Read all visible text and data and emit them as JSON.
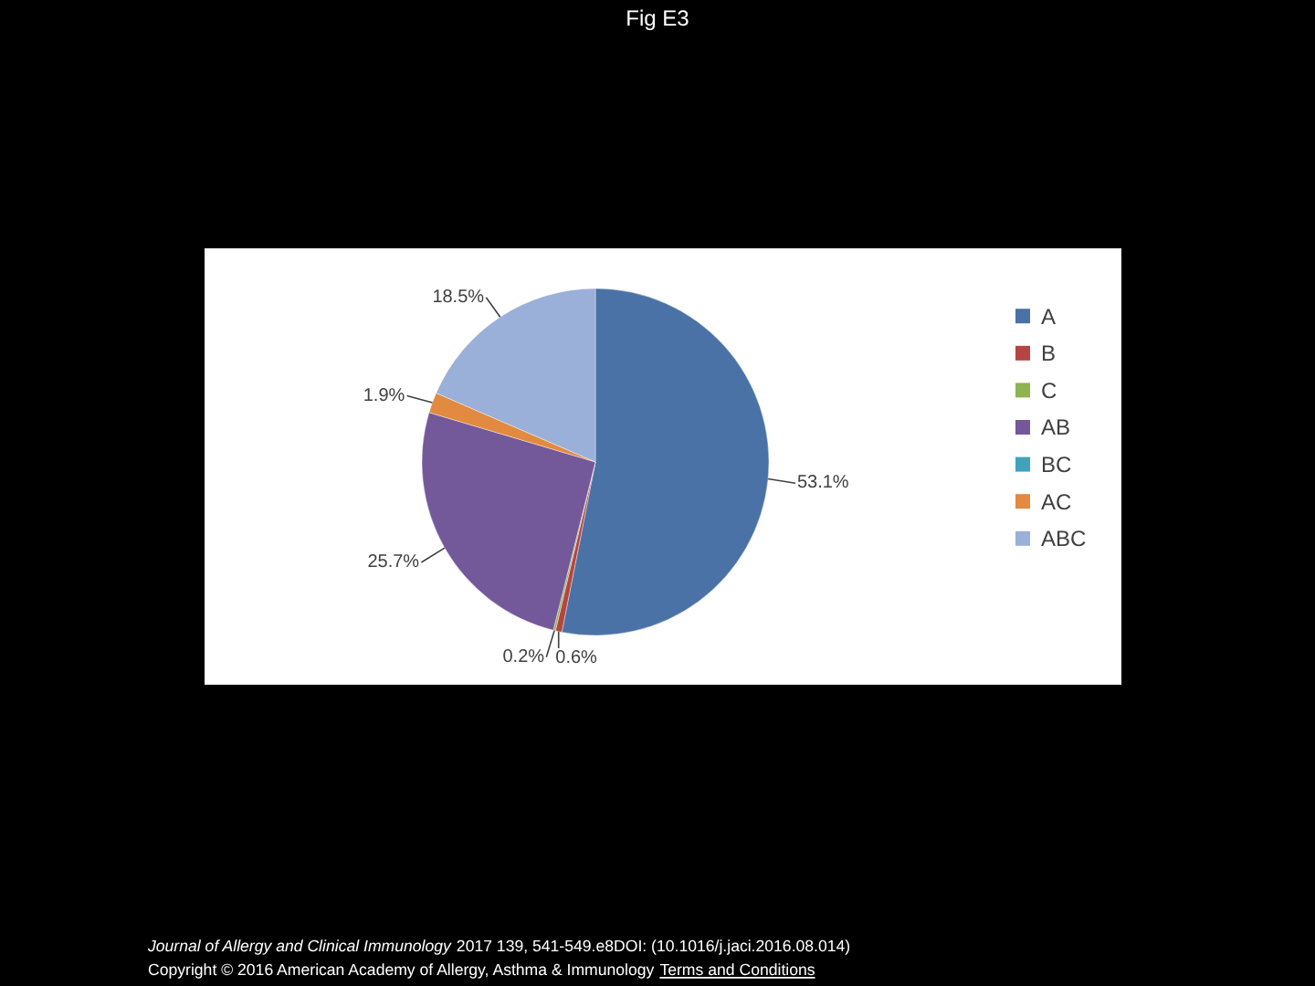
{
  "chart_data": {
    "type": "pie",
    "title": "Fig E3",
    "categories": [
      "A",
      "B",
      "C",
      "AB",
      "BC",
      "AC",
      "ABC"
    ],
    "values": [
      53.1,
      0.6,
      0.2,
      25.7,
      0,
      1.9,
      18.5
    ],
    "colors": [
      "#4a72a6",
      "#b44541",
      "#8fb350",
      "#73589a",
      "#3fa3bd",
      "#e28a3f",
      "#9bb0d8"
    ],
    "value_labels": [
      "53.1%",
      "0.6%",
      "0.2%",
      "25.7%",
      null,
      "1.9%",
      "18.5%"
    ],
    "legend": "right",
    "annotations": [
      "Journal of Allergy and Clinical Immunology",
      "2017 139, 541-549.e8DOI: (10.1016/j.jaci.2016.08.014)",
      "Copyright © 2016 American Academy of Allergy, Asthma & Immunology",
      "Terms and Conditions"
    ]
  }
}
